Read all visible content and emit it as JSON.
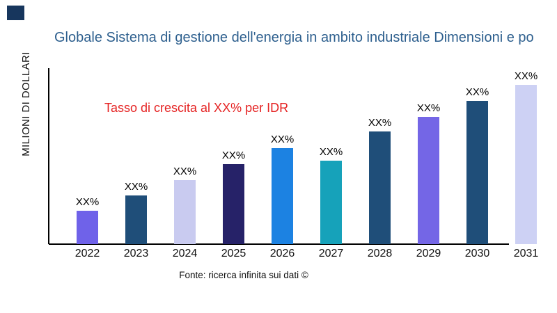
{
  "page": {
    "logo_color": "#17365d",
    "title_color": "#2d5f8e",
    "annotation_color": "#e52222",
    "axis_color": "#000000"
  },
  "chart_data": {
    "type": "bar",
    "title": "Globale Sistema di gestione dell'energia in ambito industriale Dimensioni e po",
    "annotation": "Tasso di crescita al XX% per IDR",
    "ylabel": "MILIONI DI DOLLARI",
    "xlabel": "",
    "source": "Fonte: ricerca infinita sui dati ©",
    "categories": [
      "2022",
      "2023",
      "2024",
      "2025",
      "2026",
      "2027",
      "2028",
      "2029",
      "2030",
      "2031"
    ],
    "values": [
      48,
      70,
      92,
      115,
      138,
      120,
      162,
      183,
      206,
      229
    ],
    "value_note": "relative bar heights (numeric values hidden in source, shown as XX%)",
    "bar_labels": [
      "XX%",
      "XX%",
      "XX%",
      "XX%",
      "XX%",
      "XX%",
      "XX%",
      "XX%",
      "XX%",
      "XX%"
    ],
    "bar_colors": [
      "#6f62e9",
      "#1f4e79",
      "#c9cbf0",
      "#262268",
      "#1c82e2",
      "#16a2ba",
      "#1f4e79",
      "#7466e6",
      "#1f4e79",
      "#cdd1f4"
    ],
    "grid": false,
    "legend": false,
    "y_tick_labels": []
  }
}
